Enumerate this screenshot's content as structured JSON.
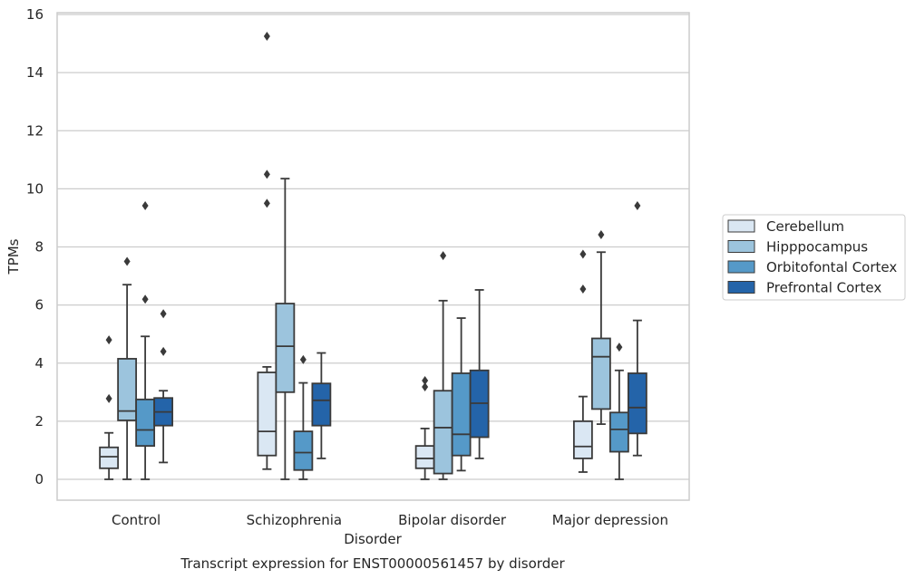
{
  "chart_data": {
    "type": "box",
    "xlabel": "Disorder",
    "ylabel": "TPMs",
    "caption": "Transcript expression for ENST00000561457 by disorder",
    "ylim": [
      -0.7,
      16.1
    ],
    "yticks": [
      0,
      2,
      4,
      6,
      8,
      10,
      12,
      14,
      16
    ],
    "grid": true,
    "legend_position": "right",
    "categories": [
      "Control",
      "Schizophrenia",
      "Bipolar disorder",
      "Major depression"
    ],
    "series": [
      {
        "name": "Cerebellum",
        "color": "#dae7f3",
        "boxes": [
          {
            "whislo": 0.0,
            "q1": 0.38,
            "med": 0.78,
            "q3": 1.1,
            "whishi": 1.6,
            "fliers": [
              2.78,
              4.8
            ]
          },
          {
            "whislo": 0.35,
            "q1": 0.82,
            "med": 1.65,
            "q3": 3.68,
            "whishi": 3.87,
            "fliers": [
              9.5,
              10.5,
              15.25
            ]
          },
          {
            "whislo": 0.0,
            "q1": 0.38,
            "med": 0.72,
            "q3": 1.15,
            "whishi": 1.75,
            "fliers": [
              3.18,
              3.4
            ]
          },
          {
            "whislo": 0.25,
            "q1": 0.72,
            "med": 1.13,
            "q3": 2.0,
            "whishi": 2.85,
            "fliers": [
              6.55,
              7.75
            ]
          }
        ]
      },
      {
        "name": "Hipppocampus",
        "color": "#9cc4dd",
        "boxes": [
          {
            "whislo": 0.0,
            "q1": 2.03,
            "med": 2.35,
            "q3": 4.15,
            "whishi": 6.7,
            "fliers": [
              7.5
            ]
          },
          {
            "whislo": 0.0,
            "q1": 3.0,
            "med": 4.58,
            "q3": 6.05,
            "whishi": 10.35,
            "fliers": []
          },
          {
            "whislo": 0.0,
            "q1": 0.2,
            "med": 1.78,
            "q3": 3.05,
            "whishi": 6.15,
            "fliers": [
              7.7
            ]
          },
          {
            "whislo": 1.9,
            "q1": 2.42,
            "med": 4.22,
            "q3": 4.85,
            "whishi": 7.82,
            "fliers": [
              8.42
            ]
          }
        ]
      },
      {
        "name": "Orbitofontal Cortex",
        "color": "#5599c8",
        "boxes": [
          {
            "whislo": 0.0,
            "q1": 1.15,
            "med": 1.7,
            "q3": 2.75,
            "whishi": 4.92,
            "fliers": [
              6.2,
              9.42
            ]
          },
          {
            "whislo": 0.0,
            "q1": 0.32,
            "med": 0.92,
            "q3": 1.65,
            "whishi": 3.32,
            "fliers": [
              4.12
            ]
          },
          {
            "whislo": 0.3,
            "q1": 0.82,
            "med": 1.55,
            "q3": 3.65,
            "whishi": 5.55,
            "fliers": []
          },
          {
            "whislo": 0.0,
            "q1": 0.95,
            "med": 1.72,
            "q3": 2.3,
            "whishi": 3.75,
            "fliers": [
              4.55
            ]
          }
        ]
      },
      {
        "name": "Prefrontal Cortex",
        "color": "#2464a9",
        "boxes": [
          {
            "whislo": 0.58,
            "q1": 1.85,
            "med": 2.32,
            "q3": 2.8,
            "whishi": 3.05,
            "fliers": [
              4.4,
              5.7
            ]
          },
          {
            "whislo": 0.72,
            "q1": 1.85,
            "med": 2.72,
            "q3": 3.3,
            "whishi": 4.35,
            "fliers": []
          },
          {
            "whislo": 0.72,
            "q1": 1.45,
            "med": 2.62,
            "q3": 3.75,
            "whishi": 6.52,
            "fliers": []
          },
          {
            "whislo": 0.82,
            "q1": 1.58,
            "med": 2.47,
            "q3": 3.65,
            "whishi": 5.47,
            "fliers": [
              9.42
            ]
          }
        ]
      }
    ]
  }
}
